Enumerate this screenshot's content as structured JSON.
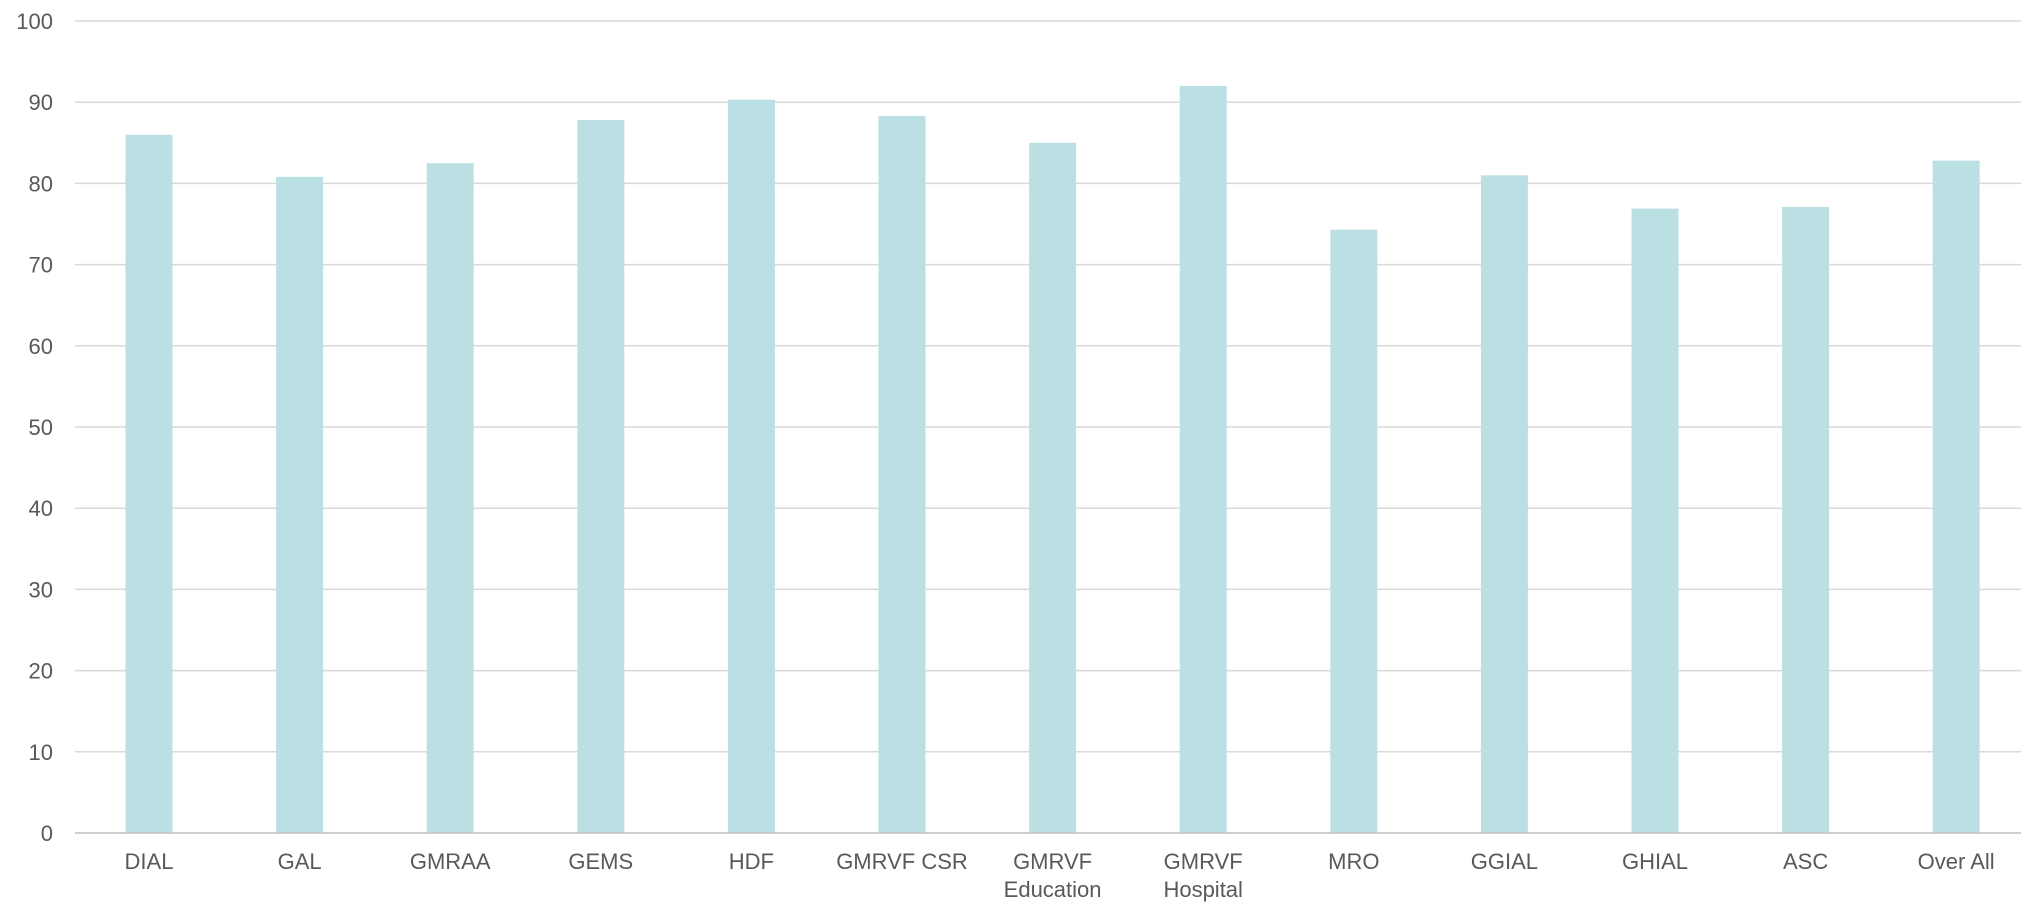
{
  "chart_data": {
    "type": "bar",
    "title": "",
    "xlabel": "",
    "ylabel": "",
    "ylim": [
      0,
      100
    ],
    "yticks": [
      0,
      10,
      20,
      30,
      40,
      50,
      60,
      70,
      80,
      90,
      100
    ],
    "categories": [
      "DIAL",
      "GAL",
      "GMRAA",
      "GEMS",
      "HDF",
      "GMRVF CSR",
      "GMRVF Education",
      "GMRVF Hospital",
      "MRO",
      "GGIAL",
      "GHIAL",
      "ASC",
      "Over All"
    ],
    "category_label_lines": [
      [
        "DIAL"
      ],
      [
        "GAL"
      ],
      [
        "GMRAA"
      ],
      [
        "GEMS"
      ],
      [
        "HDF"
      ],
      [
        "GMRVF CSR"
      ],
      [
        "GMRVF",
        "Education"
      ],
      [
        "GMRVF",
        "Hospital"
      ],
      [
        "MRO"
      ],
      [
        "GGIAL"
      ],
      [
        "GHIAL"
      ],
      [
        "ASC"
      ],
      [
        "Over All"
      ]
    ],
    "values": [
      86,
      80.8,
      82.5,
      87.8,
      90.3,
      88.3,
      85,
      92,
      74.3,
      81,
      76.9,
      77.1,
      82.8
    ],
    "grid": true,
    "legend": "none",
    "colors": {
      "bar": "#bbe0e3",
      "grid": "#d9d9d9",
      "axis": "#bfbfbf",
      "text": "#595959"
    }
  }
}
